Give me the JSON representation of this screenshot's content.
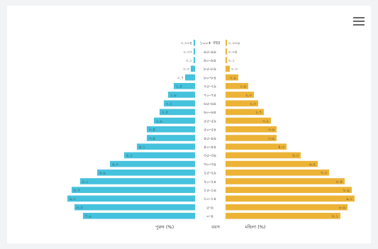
{
  "chart_data": {
    "type": "bar",
    "orientation": "horizontal",
    "title": "",
    "colors": {
      "male": "#45c2dd",
      "female": "#ecb336"
    },
    "xlabel_left": "পুরুষ (%)",
    "xlabel_center": "বয়স",
    "xlabel_right": "মহিলা (%)",
    "categories": [
      "১০০+ বছর",
      "৯৫-৯৯",
      "৯০-৯৪",
      "৮৫-৮৯",
      "৮০-৮৪",
      "৭৫-৭৯",
      "৭০-৭৪",
      "৬৫-৬৯",
      "৬০-৬৪",
      "৫৫-৫৯",
      "৫০-৫৪",
      "৪৫-৪৯",
      "৪০-৪৪",
      "৩৫-৩৯",
      "৩০-৩৪",
      "২৫-২৯",
      "২০-২৪",
      "১৫-১৯",
      "১০-১৪",
      "৫-৯",
      "০-৪"
    ],
    "series": [
      {
        "name": "পুরুষ",
        "values": [
          0.004,
          0.03,
          0.1,
          0.3,
          0.7,
          1.5,
          1.9,
          2.2,
          2.5,
          2.9,
          3.4,
          3.4,
          4.1,
          5.0,
          6.0,
          6.9,
          8.1,
          8.7,
          9.0,
          8.5,
          7.9
        ]
      },
      {
        "name": "মহিলা",
        "values": [
          0.006,
          0.04,
          0.1,
          0.3,
          0.9,
          1.6,
          2.0,
          2.3,
          2.7,
          3.2,
          3.6,
          3.6,
          4.3,
          5.3,
          6.5,
          7.3,
          8.4,
          8.9,
          9.1,
          8.6,
          8.1
        ]
      }
    ],
    "value_labels_male": [
      "০.০০৪",
      "০.০৩",
      "০.১",
      "০.৩",
      "০.৭",
      "১.৫",
      "১.৯",
      "২.২",
      "২.৫",
      "২.৯",
      "৩.৪",
      "৩.৪",
      "৪.১",
      "৫.০",
      "৬.০",
      "৬.৯",
      "৮.১",
      "৮.৭",
      "৯.০",
      "৮.৫",
      "৭.৯"
    ],
    "value_labels_female": [
      "০.০০৬",
      "০.০৪",
      "০.১",
      "০.৩",
      "০.৯",
      "১.৬",
      "২.০",
      "২.৩",
      "২.৭",
      "৩.২",
      "৩.৬",
      "৩.৬",
      "৪.৩",
      "৫.৩",
      "৬.৫",
      "৭.৩",
      "৮.৪",
      "৮.৯",
      "৯.১",
      "৮.৬",
      "৮.১"
    ],
    "xlim": [
      0,
      10
    ],
    "grid": false,
    "legend": "none"
  },
  "menu": {
    "icon": "hamburger-menu-icon"
  }
}
